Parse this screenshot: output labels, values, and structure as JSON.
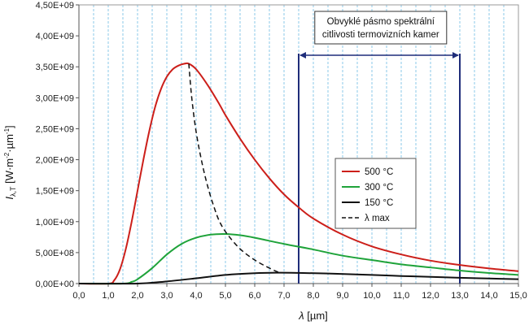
{
  "chart_data": {
    "type": "line",
    "xlabel_symbol": "λ",
    "xlabel_unit": "[µm]",
    "ylabel_main": "I",
    "ylabel_sub": "λ,T",
    "ylabel_unit": "[W·m",
    "ylabel_exp1": "-2",
    "ylabel_mid": "·µm",
    "ylabel_exp2": "-1",
    "ylabel_end": "]",
    "xlim": [
      0,
      15
    ],
    "ylim": [
      0,
      4500000000
    ],
    "x_ticks": [
      "0,0",
      "1,0",
      "2,0",
      "3,0",
      "4,0",
      "5,0",
      "6,0",
      "7,0",
      "8,0",
      "9,0",
      "10,0",
      "11,0",
      "12,0",
      "13,0",
      "14,0",
      "15,0"
    ],
    "y_ticks": [
      "0,00E+00",
      "5,00E+08",
      "1,00E+09",
      "1,50E+09",
      "2,00E+09",
      "2,50E+09",
      "3,00E+09",
      "3,50E+09",
      "4,00E+09",
      "4,50E+09"
    ],
    "grid": "vertical dashed",
    "legend_position": "right",
    "series": [
      {
        "name": "500 °C",
        "color": "#cc1f1a",
        "x": [
          1.0,
          1.2,
          1.4,
          1.6,
          1.8,
          2.0,
          2.2,
          2.4,
          2.6,
          2.8,
          3.0,
          3.2,
          3.4,
          3.6,
          3.75,
          4.0,
          4.4,
          4.8,
          5.0,
          5.5,
          6.0,
          6.5,
          7.0,
          7.5,
          8.0,
          9.0,
          10.0,
          11.0,
          12.0,
          13.0,
          14.0,
          15.0
        ],
        "y": [
          4000000,
          50000000,
          230000000,
          560000000,
          1000000000,
          1500000000,
          2000000000,
          2460000000,
          2850000000,
          3140000000,
          3340000000,
          3460000000,
          3520000000,
          3550000000,
          3550000000,
          3460000000,
          3200000000,
          2890000000,
          2720000000,
          2340000000,
          2000000000,
          1700000000,
          1440000000,
          1230000000,
          1050000000,
          790000000,
          600000000,
          470000000,
          370000000,
          300000000,
          245000000,
          200000000
        ]
      },
      {
        "name": "300 °C",
        "color": "#1fa33a",
        "x": [
          1.5,
          1.8,
          2.0,
          2.5,
          3.0,
          3.5,
          4.0,
          4.5,
          5.0,
          5.5,
          6.0,
          7.0,
          8.0,
          9.0,
          10.0,
          11.0,
          12.0,
          13.0,
          14.0,
          15.0
        ],
        "y": [
          4000000,
          28000000,
          70000000,
          250000000,
          470000000,
          640000000,
          740000000,
          790000000,
          800000000,
          780000000,
          740000000,
          640000000,
          550000000,
          450000000,
          380000000,
          310000000,
          260000000,
          210000000,
          170000000,
          140000000
        ]
      },
      {
        "name": "150 °C",
        "color": "#111111",
        "x": [
          2.0,
          3.0,
          4.0,
          5.0,
          6.0,
          6.8,
          7.5,
          8.5,
          10.0,
          11.0,
          12.0,
          13.0,
          14.0,
          15.0
        ],
        "y": [
          3000000,
          35000000,
          85000000,
          140000000,
          168000000,
          175000000,
          172000000,
          162000000,
          140000000,
          122000000,
          108000000,
          94000000,
          82000000,
          70000000
        ]
      },
      {
        "name": "λ  max",
        "color": "#111111",
        "dash": true,
        "x": [
          3.75,
          3.85,
          4.0,
          4.2,
          4.4,
          4.6,
          4.8,
          5.06,
          5.5,
          6.0,
          6.5,
          6.85
        ],
        "y": [
          3550000000,
          3000000000,
          2450000000,
          1950000000,
          1560000000,
          1250000000,
          1000000000,
          800000000,
          560000000,
          380000000,
          250000000,
          175000000
        ]
      }
    ],
    "band": {
      "x_start": 7.5,
      "x_end": 13.0,
      "color": "#1f2d7a",
      "label_line1": "Obvyklé pásmo spektrální",
      "label_line2": "citlivosti termovizních kamer"
    }
  }
}
